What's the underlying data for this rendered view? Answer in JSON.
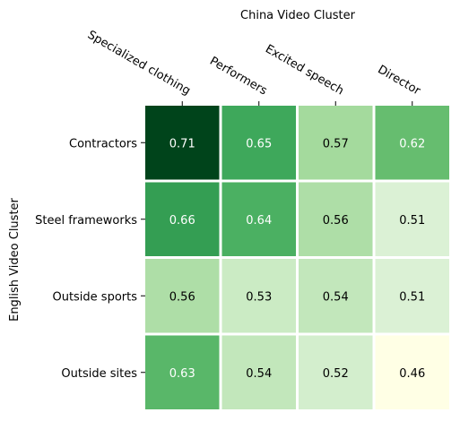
{
  "chart_data": {
    "type": "heatmap",
    "title": "China Video Cluster",
    "xlabel": "China Video Cluster",
    "ylabel": "English Video Cluster",
    "x_categories": [
      "Specialized clothing",
      "Performers",
      "Excited speech",
      "Director"
    ],
    "y_categories": [
      "Contractors",
      "Steel frameworks",
      "Outside sports",
      "Outside sites"
    ],
    "values": [
      [
        0.71,
        0.65,
        0.57,
        0.62
      ],
      [
        0.66,
        0.64,
        0.56,
        0.51
      ],
      [
        0.56,
        0.53,
        0.54,
        0.51
      ],
      [
        0.63,
        0.54,
        0.52,
        0.46
      ]
    ],
    "colormap": "Greens",
    "vmin": 0.46,
    "vmax": 0.71,
    "x_tick_position": "top",
    "grid": false,
    "legend": "none"
  }
}
